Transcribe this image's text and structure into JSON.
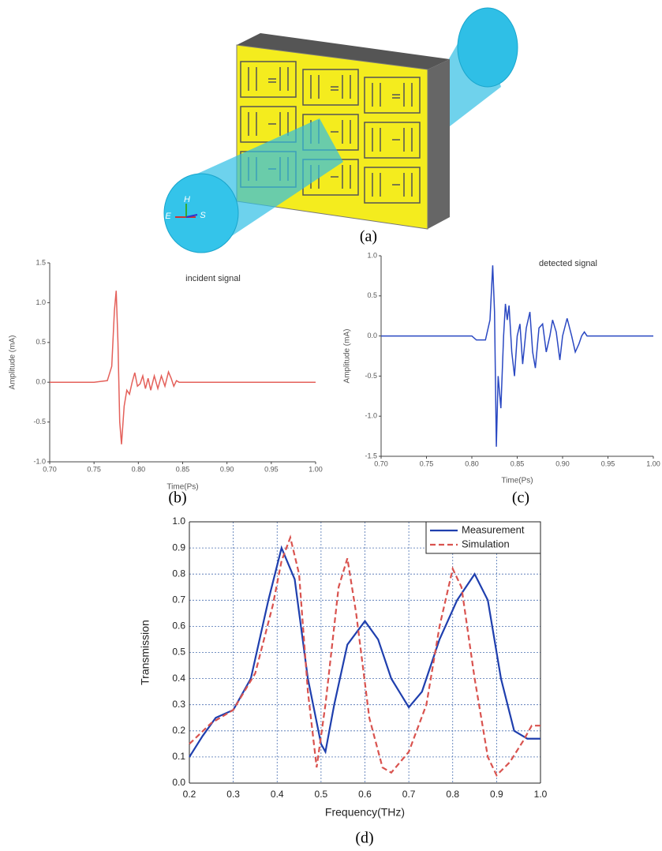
{
  "diagram": {
    "caption": "(a)",
    "labels": [
      "H",
      "E",
      "S"
    ]
  },
  "chart_data": [
    {
      "type": "line",
      "caption": "(b)",
      "annotation": "incident signal",
      "xlabel": "Time(Ps)",
      "ylabel": "Amplitude (mA)",
      "xlim": [
        0.7,
        1.0
      ],
      "ylim": [
        -1.0,
        1.5
      ],
      "xticks": [
        {
          "value": 0.7,
          "label": "0.70"
        },
        0.75,
        {
          "value": 0.8,
          "label": "0.80"
        },
        0.85,
        {
          "value": 0.9,
          "label": "0.90"
        },
        0.95,
        {
          "value": 1.0,
          "label": "1.00"
        }
      ],
      "yticks": [
        {
          "value": -1.0,
          "label": "-1.0"
        },
        -0.5,
        {
          "value": 0,
          "label": "0.0"
        },
        0.5,
        {
          "value": 1.0,
          "label": "1.0"
        },
        1.5
      ],
      "grid": false,
      "series": [
        {
          "color": "#e4605a",
          "x": [
            0.7,
            0.75,
            0.765,
            0.77,
            0.773,
            0.775,
            0.777,
            0.779,
            0.781,
            0.784,
            0.787,
            0.79,
            0.793,
            0.796,
            0.799,
            0.802,
            0.805,
            0.808,
            0.811,
            0.814,
            0.818,
            0.822,
            0.826,
            0.83,
            0.834,
            0.837,
            0.84,
            0.843,
            0.846,
            1.0
          ],
          "values": [
            0,
            0,
            0.02,
            0.2,
            0.9,
            1.15,
            0.5,
            -0.5,
            -0.78,
            -0.3,
            -0.1,
            -0.15,
            0.0,
            0.12,
            -0.05,
            -0.02,
            0.08,
            -0.08,
            0.05,
            -0.1,
            0.08,
            -0.08,
            0.08,
            -0.05,
            0.13,
            0.05,
            -0.05,
            0.02,
            0,
            0
          ]
        }
      ]
    },
    {
      "type": "line",
      "caption": "(c)",
      "annotation": "detected signal",
      "xlabel": "Time(Ps)",
      "ylabel": "Amplitude (mA)",
      "xlim": [
        0.7,
        1.0
      ],
      "ylim": [
        -1.5,
        1.0
      ],
      "xticks": [
        {
          "value": 0.7,
          "label": "0.70"
        },
        0.75,
        {
          "value": 0.8,
          "label": "0.80"
        },
        0.85,
        {
          "value": 0.9,
          "label": "0.90"
        },
        0.95,
        {
          "value": 1.0,
          "label": "1.00"
        }
      ],
      "yticks": [
        -1.5,
        {
          "value": -1.0,
          "label": "-1.0"
        },
        -0.5,
        {
          "value": 0,
          "label": "0.0"
        },
        0.5,
        {
          "value": 1.0,
          "label": "1.0"
        }
      ],
      "grid": false,
      "series": [
        {
          "color": "#2a48c2",
          "x": [
            0.7,
            0.8,
            0.805,
            0.815,
            0.82,
            0.823,
            0.825,
            0.827,
            0.829,
            0.832,
            0.835,
            0.837,
            0.839,
            0.841,
            0.844,
            0.847,
            0.85,
            0.853,
            0.856,
            0.86,
            0.864,
            0.867,
            0.87,
            0.874,
            0.878,
            0.882,
            0.886,
            0.889,
            0.893,
            0.897,
            0.9,
            0.905,
            0.91,
            0.914,
            0.918,
            0.921,
            0.924,
            0.927,
            1.0
          ],
          "values": [
            0,
            0,
            -0.05,
            -0.05,
            0.2,
            0.88,
            0.3,
            -1.38,
            -0.5,
            -0.9,
            0.0,
            0.4,
            0.2,
            0.38,
            -0.2,
            -0.5,
            0.0,
            0.15,
            -0.35,
            0.1,
            0.3,
            -0.2,
            -0.4,
            0.1,
            0.15,
            -0.2,
            0.0,
            0.2,
            0.05,
            -0.3,
            0.0,
            0.22,
            0.0,
            -0.2,
            -0.1,
            0.0,
            0.05,
            0,
            0
          ]
        }
      ]
    },
    {
      "type": "line",
      "caption": "(d)",
      "xlabel": "Frequency(THz)",
      "ylabel": "Transmission",
      "xlim": [
        0.2,
        1.0
      ],
      "ylim": [
        0.0,
        1.0
      ],
      "xticks": [
        0.2,
        0.3,
        0.4,
        0.5,
        0.6,
        0.7,
        0.8,
        0.9,
        {
          "value": 1.0,
          "label": "1.0"
        }
      ],
      "yticks": [
        {
          "value": 0,
          "label": "0.0"
        },
        0.1,
        0.2,
        0.3,
        0.4,
        0.5,
        0.6,
        0.7,
        0.8,
        0.9,
        {
          "value": 1.0,
          "label": "1.0"
        }
      ],
      "grid": true,
      "legend": "upper right",
      "series": [
        {
          "name": "Measurement",
          "color": "#1f3fae",
          "dashed": false,
          "x": [
            0.2,
            0.23,
            0.26,
            0.3,
            0.34,
            0.38,
            0.41,
            0.44,
            0.47,
            0.5,
            0.51,
            0.53,
            0.56,
            0.6,
            0.63,
            0.66,
            0.7,
            0.73,
            0.77,
            0.81,
            0.85,
            0.88,
            0.91,
            0.94,
            0.97,
            1.0
          ],
          "values": [
            0.1,
            0.18,
            0.25,
            0.28,
            0.4,
            0.7,
            0.9,
            0.78,
            0.4,
            0.15,
            0.12,
            0.3,
            0.53,
            0.62,
            0.55,
            0.4,
            0.29,
            0.35,
            0.55,
            0.7,
            0.8,
            0.7,
            0.4,
            0.2,
            0.17,
            0.17
          ]
        },
        {
          "name": "Simulation",
          "color": "#d9534f",
          "dashed": true,
          "x": [
            0.2,
            0.25,
            0.3,
            0.35,
            0.39,
            0.41,
            0.43,
            0.45,
            0.47,
            0.49,
            0.51,
            0.54,
            0.56,
            0.58,
            0.61,
            0.64,
            0.66,
            0.7,
            0.74,
            0.77,
            0.8,
            0.82,
            0.85,
            0.88,
            0.9,
            0.93,
            0.96,
            0.98,
            1.0
          ],
          "values": [
            0.15,
            0.23,
            0.28,
            0.42,
            0.68,
            0.85,
            0.94,
            0.8,
            0.35,
            0.06,
            0.3,
            0.75,
            0.86,
            0.65,
            0.25,
            0.06,
            0.04,
            0.12,
            0.3,
            0.6,
            0.82,
            0.75,
            0.4,
            0.1,
            0.03,
            0.08,
            0.16,
            0.22,
            0.22
          ]
        }
      ]
    }
  ]
}
